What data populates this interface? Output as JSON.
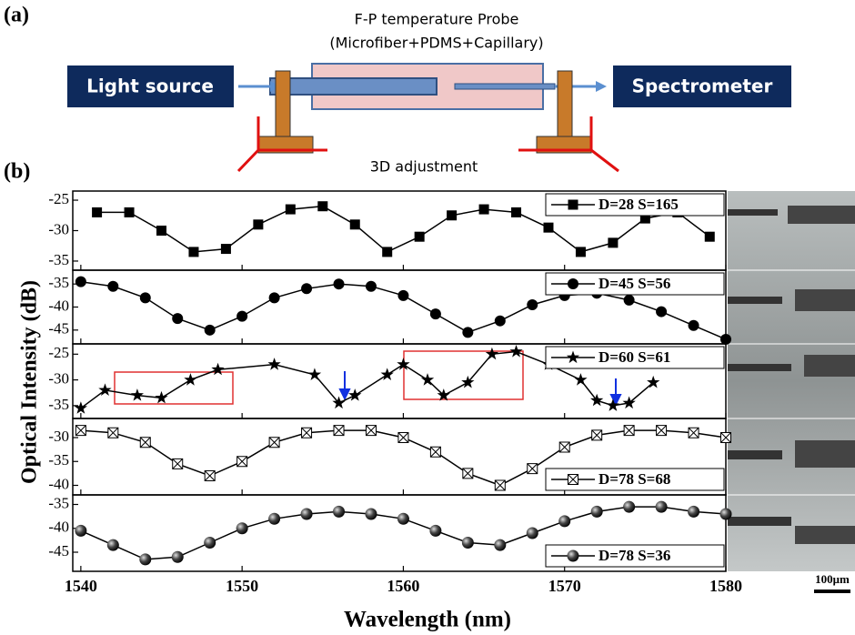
{
  "figure": {
    "panel_a_label": "(a)",
    "panel_b_label": "(b)",
    "ylabel": "Optical Intensity (dB)",
    "xlabel": "Wavelength (nm)",
    "scale_bar": "100μm"
  },
  "diagram": {
    "probe_title": "F-P temperature Probe",
    "probe_subtitle": "(Microfiber+PDMS+Capillary)",
    "source": "Light source",
    "detector": "Spectrometer",
    "adjustment": "3D adjustment"
  },
  "chart_data": [
    {
      "type": "line",
      "xlim": [
        1539.5,
        1580
      ],
      "ylim": [
        -36.5,
        -23.5
      ],
      "yticks": [
        -25,
        -30,
        -35
      ],
      "legend": "upper right",
      "x": [
        1541,
        1543,
        1545,
        1547,
        1549,
        1551,
        1553,
        1555,
        1557,
        1559,
        1561,
        1563,
        1565,
        1567,
        1569,
        1571,
        1573,
        1575,
        1577,
        1579
      ],
      "series": [
        {
          "name": "D=28 S=165",
          "color": "#000000",
          "marker": "square",
          "values": [
            -27,
            -27,
            -30,
            -33.5,
            -33,
            -29,
            -26.5,
            -26,
            -29,
            -33.5,
            -31,
            -27.5,
            -26.5,
            -27,
            -29.5,
            -33.5,
            -32,
            -28,
            -27,
            -31
          ]
        }
      ]
    },
    {
      "type": "line",
      "xlim": [
        1539.5,
        1580
      ],
      "ylim": [
        -48,
        -32
      ],
      "yticks": [
        -35,
        -40,
        -45
      ],
      "legend": "upper right",
      "x": [
        1540,
        1542,
        1544,
        1546,
        1548,
        1550,
        1552,
        1554,
        1556,
        1558,
        1560,
        1562,
        1564,
        1566,
        1568,
        1570,
        1572,
        1574,
        1576,
        1578,
        1580
      ],
      "series": [
        {
          "name": "D=45 S=56",
          "color": "#000000",
          "marker": "circle",
          "values": [
            -34.5,
            -35.5,
            -38,
            -42.5,
            -45,
            -42,
            -38,
            -36,
            -35,
            -35.5,
            -37.5,
            -41.5,
            -45.5,
            -43,
            -39.5,
            -37.5,
            -37,
            -38.5,
            -41,
            -44,
            -47
          ]
        }
      ]
    },
    {
      "type": "line",
      "xlim": [
        1539.5,
        1580
      ],
      "ylim": [
        -37.5,
        -23
      ],
      "yticks": [
        -25,
        -30,
        -35
      ],
      "legend": "upper right",
      "x": [
        1540,
        1541.5,
        1543.5,
        1545,
        1546.8,
        1548.5,
        1552,
        1554.5,
        1556,
        1557,
        1559,
        1560,
        1561.5,
        1562.5,
        1564,
        1565.5,
        1567,
        1569,
        1571,
        1572,
        1573,
        1574,
        1575.5
      ],
      "series": [
        {
          "name": "D=60 S=61",
          "color": "#000000",
          "marker": "star",
          "values": [
            -35.5,
            -32,
            -33,
            -33.5,
            -30,
            -28,
            -27,
            -29,
            -34.5,
            -33,
            -29,
            -27,
            -30,
            -33,
            -30.5,
            -25,
            -24.5,
            -27,
            -30,
            -34,
            -35,
            -34.5,
            -30.5
          ]
        }
      ]
    },
    {
      "type": "line",
      "xlim": [
        1539.5,
        1580
      ],
      "ylim": [
        -42,
        -26
      ],
      "yticks": [
        -30,
        -35,
        -40
      ],
      "legend": "lower right",
      "x": [
        1540,
        1542,
        1544,
        1546,
        1548,
        1550,
        1552,
        1554,
        1556,
        1558,
        1560,
        1562,
        1564,
        1566,
        1568,
        1570,
        1572,
        1574,
        1576,
        1578,
        1580
      ],
      "series": [
        {
          "name": "D=78 S=68",
          "color": "#000000",
          "marker": "crossed-square",
          "values": [
            -28.5,
            -29,
            -31,
            -35.5,
            -38,
            -35,
            -31,
            -29,
            -28.5,
            -28.5,
            -30,
            -33,
            -37.5,
            -40,
            -36.5,
            -32,
            -29.5,
            -28.5,
            -28.5,
            -29,
            -30
          ]
        }
      ]
    },
    {
      "type": "line",
      "xlim": [
        1539.5,
        1580
      ],
      "ylim": [
        -49,
        -33
      ],
      "yticks": [
        -35,
        -40,
        -45
      ],
      "legend": "lower right",
      "xticks": [
        1540,
        1550,
        1560,
        1570,
        1580
      ],
      "x": [
        1540,
        1542,
        1544,
        1546,
        1548,
        1550,
        1552,
        1554,
        1556,
        1558,
        1560,
        1562,
        1564,
        1566,
        1568,
        1570,
        1572,
        1574,
        1576,
        1578,
        1580
      ],
      "series": [
        {
          "name": "D=78 S=36",
          "color": "#000000",
          "marker": "sphere",
          "values": [
            -40.5,
            -43.5,
            -46.5,
            -46,
            -43,
            -40,
            -38,
            -37,
            -36.5,
            -37,
            -38,
            -40.5,
            -43,
            -43.5,
            -41,
            -38.5,
            -36.5,
            -35.5,
            -35.5,
            -36.5,
            -37
          ]
        }
      ]
    }
  ]
}
